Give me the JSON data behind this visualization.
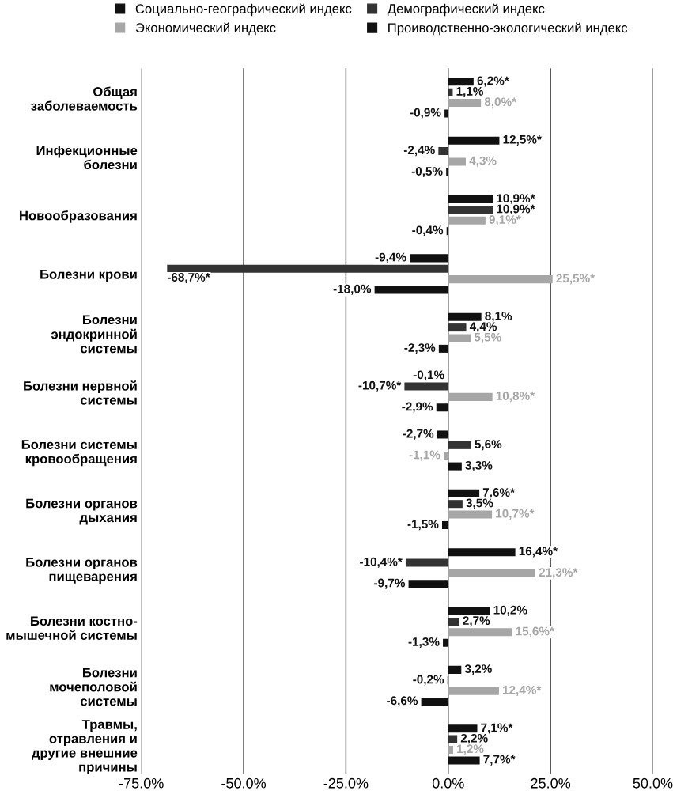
{
  "chart_data": {
    "type": "bar",
    "orientation": "horizontal",
    "categories": [
      "Общая\nзаболеваемость",
      "Инфекционные\nболезни",
      "Новообразования",
      "Болезни крови",
      "Болезни\nэндокринной\nсистемы",
      "Болезни нервной\nсистемы",
      "Болезни системы\nкровообращения",
      "Болезни органов\nдыхания",
      "Болезни органов\nпищеварения",
      "Болезни костно-\nмышечной системы",
      "Болезни\nмочеполовой\nсистемы",
      "Травмы,\nотравления и\nдругие внешние\nпричины"
    ],
    "series": [
      {
        "name": "Социально-географический индекс",
        "color": "#111111",
        "values": [
          6.2,
          12.5,
          10.9,
          -9.4,
          8.1,
          -0.1,
          -2.7,
          7.6,
          16.4,
          10.2,
          3.2,
          7.1
        ],
        "value_labels": [
          "6,2%*",
          "12,5%*",
          "10,9%*",
          "-9,4%",
          "8,1%",
          "-0,1%",
          "-2,7%",
          "7,6%*",
          "16,4%*",
          "10,2%",
          "3,2%",
          "7,1%*"
        ]
      },
      {
        "name": "Демографический индекс",
        "color": "#333333",
        "values": [
          1.1,
          -2.4,
          10.9,
          -68.7,
          4.4,
          -10.7,
          5.6,
          3.5,
          -10.4,
          2.7,
          -0.2,
          2.2
        ],
        "value_labels": [
          "1,1%",
          "-2,4%",
          "10,9%*",
          "-68,7%*",
          "4,4%",
          "-10,7%*",
          "5,6%",
          "3,5%",
          "-10,4%*",
          "2,7%",
          "-0,2%",
          "2,2%"
        ]
      },
      {
        "name": "Экономический индекс",
        "color": "#a6a6a6",
        "values": [
          8.0,
          4.3,
          9.1,
          25.5,
          5.5,
          10.8,
          -1.1,
          10.7,
          21.3,
          15.6,
          12.4,
          1.2
        ],
        "value_labels": [
          "8,0%*",
          "4,3%",
          "9,1%*",
          "25,5%*",
          "5,5%",
          "10,8%*",
          "-1,1%",
          "10,7%*",
          "21,3%*",
          "15,6%*",
          "12,4%*",
          "1,2%"
        ]
      },
      {
        "name": "Проиводственно-экологический индекс",
        "color": "#111111",
        "values": [
          -0.9,
          -0.5,
          -0.4,
          -18.0,
          -2.3,
          -2.9,
          3.3,
          -1.5,
          -9.7,
          -1.3,
          -6.6,
          7.7
        ],
        "value_labels": [
          "-0,9%",
          "-0,5%",
          "-0,4%",
          "-18,0%",
          "-2,3%",
          "-2,9%",
          "3,3%",
          "-1,5%",
          "-9,7%",
          "-1,3%",
          "-6,6%",
          "7,7%*"
        ]
      }
    ],
    "xlim": [
      -75,
      50
    ],
    "xticks": [
      {
        "value": -75,
        "label": "-75.0%"
      },
      {
        "value": -50,
        "label": "-50.0%"
      },
      {
        "value": -25,
        "label": "-25.0%"
      },
      {
        "value": 0,
        "label": "0.0%"
      },
      {
        "value": 25,
        "label": "25.0%"
      },
      {
        "value": 50,
        "label": "50.0%"
      }
    ],
    "grid": "x",
    "legend": "top"
  }
}
